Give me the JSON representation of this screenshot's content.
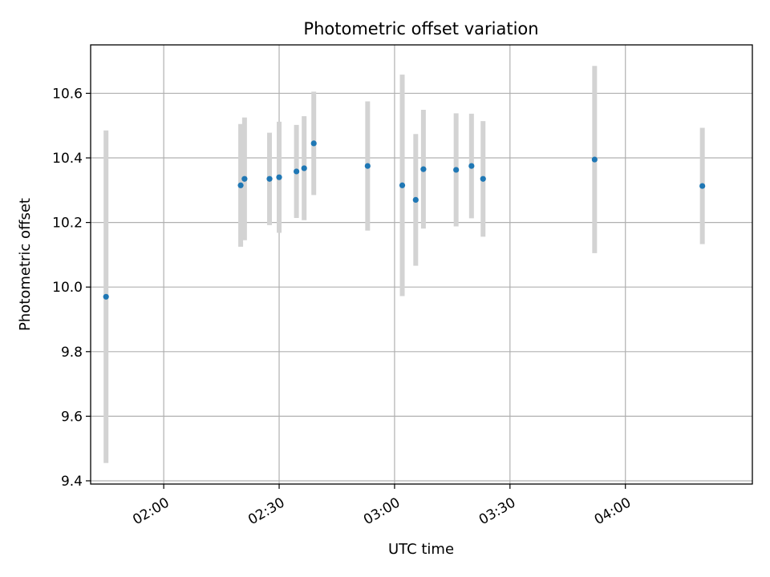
{
  "chart_data": {
    "type": "scatter",
    "title": "Photometric offset variation",
    "xlabel": "UTC time",
    "ylabel": "Photometric offset",
    "x_tick_labels": [
      "02:00",
      "02:30",
      "03:00",
      "03:30",
      "04:00"
    ],
    "x_tick_times": [
      "02:00",
      "02:30",
      "03:00",
      "03:30",
      "04:00"
    ],
    "y_ticks": [
      9.4,
      9.6,
      9.8,
      10.0,
      10.2,
      10.4,
      10.6
    ],
    "y_tick_labels": [
      "9.4",
      "9.6",
      "9.8",
      "10.0",
      "10.2",
      "10.4",
      "10.6"
    ],
    "xlim": [
      "01:41:00",
      "04:33:00"
    ],
    "ylim": [
      9.39,
      10.75
    ],
    "grid": true,
    "series": [
      {
        "marker_color": "#1f77b4",
        "errorbar_color": "#d3d3d3",
        "points": [
          {
            "time": "01:45:00",
            "y": 9.97,
            "err": 0.515
          },
          {
            "time": "02:20:00",
            "y": 10.315,
            "err": 0.19
          },
          {
            "time": "02:21:00",
            "y": 10.335,
            "err": 0.19
          },
          {
            "time": "02:27:30",
            "y": 10.335,
            "err": 0.143
          },
          {
            "time": "02:30:00",
            "y": 10.34,
            "err": 0.172
          },
          {
            "time": "02:34:30",
            "y": 10.358,
            "err": 0.144
          },
          {
            "time": "02:36:30",
            "y": 10.368,
            "err": 0.161
          },
          {
            "time": "02:39:00",
            "y": 10.445,
            "err": 0.16
          },
          {
            "time": "02:53:00",
            "y": 10.375,
            "err": 0.2
          },
          {
            "time": "03:02:00",
            "y": 10.315,
            "err": 0.343
          },
          {
            "time": "03:05:30",
            "y": 10.27,
            "err": 0.204
          },
          {
            "time": "03:07:30",
            "y": 10.365,
            "err": 0.184
          },
          {
            "time": "03:16:00",
            "y": 10.363,
            "err": 0.175
          },
          {
            "time": "03:20:00",
            "y": 10.375,
            "err": 0.162
          },
          {
            "time": "03:23:00",
            "y": 10.335,
            "err": 0.179
          },
          {
            "time": "03:52:00",
            "y": 10.395,
            "err": 0.29
          },
          {
            "time": "04:20:00",
            "y": 10.313,
            "err": 0.18
          }
        ]
      }
    ]
  }
}
